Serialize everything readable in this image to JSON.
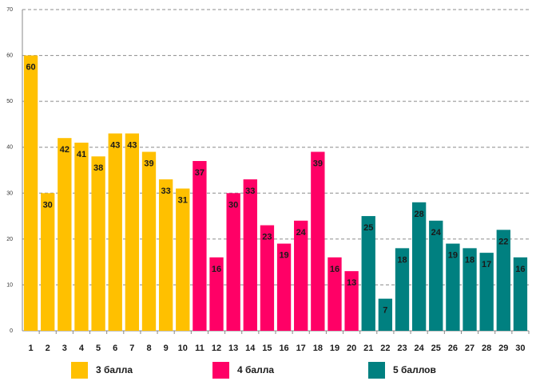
{
  "chart_data": {
    "type": "bar",
    "title": "",
    "xlabel": "",
    "ylabel": "",
    "ylim": [
      0,
      70
    ],
    "yticks": [
      0,
      10,
      20,
      30,
      40,
      50,
      60,
      70
    ],
    "grid": true,
    "categories": [
      "1",
      "2",
      "3",
      "4",
      "5",
      "6",
      "7",
      "8",
      "9",
      "10",
      "11",
      "12",
      "13",
      "14",
      "15",
      "16",
      "17",
      "18",
      "19",
      "20",
      "21",
      "22",
      "23",
      "24",
      "25",
      "26",
      "27",
      "28",
      "29",
      "30"
    ],
    "values": [
      60,
      30,
      42,
      41,
      38,
      43,
      43,
      39,
      33,
      31,
      37,
      16,
      30,
      33,
      23,
      19,
      24,
      39,
      16,
      13,
      25,
      7,
      18,
      28,
      24,
      19,
      18,
      17,
      22,
      16
    ],
    "groups": [
      0,
      0,
      0,
      0,
      0,
      0,
      0,
      0,
      0,
      0,
      1,
      1,
      1,
      1,
      1,
      1,
      1,
      1,
      1,
      1,
      2,
      2,
      2,
      2,
      2,
      2,
      2,
      2,
      2,
      2
    ],
    "series": [
      {
        "name": "3 балла",
        "color": "#FFC000"
      },
      {
        "name": "4 балла",
        "color": "#FF0066"
      },
      {
        "name": "5 баллов",
        "color": "#008080"
      }
    ]
  }
}
